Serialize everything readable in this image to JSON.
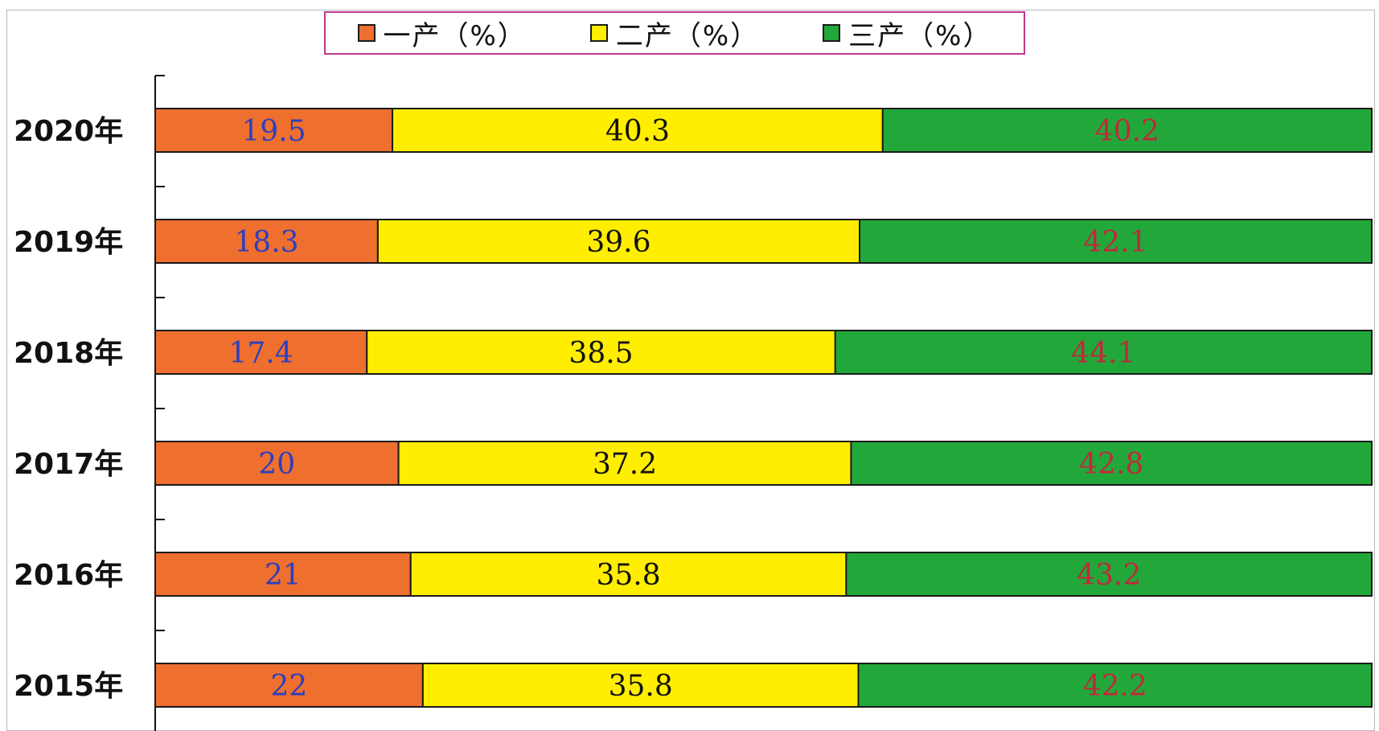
{
  "chart_data": {
    "type": "bar",
    "orientation": "horizontal",
    "stacked": true,
    "normalized_percent": true,
    "categories": [
      "2020年",
      "2019年",
      "2018年",
      "2017年",
      "2016年",
      "2015年"
    ],
    "series": [
      {
        "name": "一产（%）",
        "color": "#ef6f2e",
        "label_color": "#2b3fbf",
        "values": [
          19.5,
          18.3,
          17.4,
          20,
          21,
          22
        ]
      },
      {
        "name": "二产（%）",
        "color": "#ffee00",
        "label_color": "#111111",
        "values": [
          40.3,
          39.6,
          38.5,
          37.2,
          35.8,
          35.8
        ]
      },
      {
        "name": "三产（%）",
        "color": "#22a83a",
        "label_color": "#c2283c",
        "values": [
          40.2,
          42.1,
          44.1,
          42.8,
          43.2,
          42.2
        ]
      }
    ],
    "data_labels": [
      [
        "19.5",
        "40.3",
        "40.2"
      ],
      [
        "18.3",
        "39.6",
        "42.1"
      ],
      [
        "17.4",
        "38.5",
        "44.1"
      ],
      [
        "20",
        "37.2",
        "42.8"
      ],
      [
        "21",
        "35.8",
        "43.2"
      ],
      [
        "22",
        "35.8",
        "42.2"
      ]
    ],
    "legend_position": "top-center",
    "grid": false
  }
}
